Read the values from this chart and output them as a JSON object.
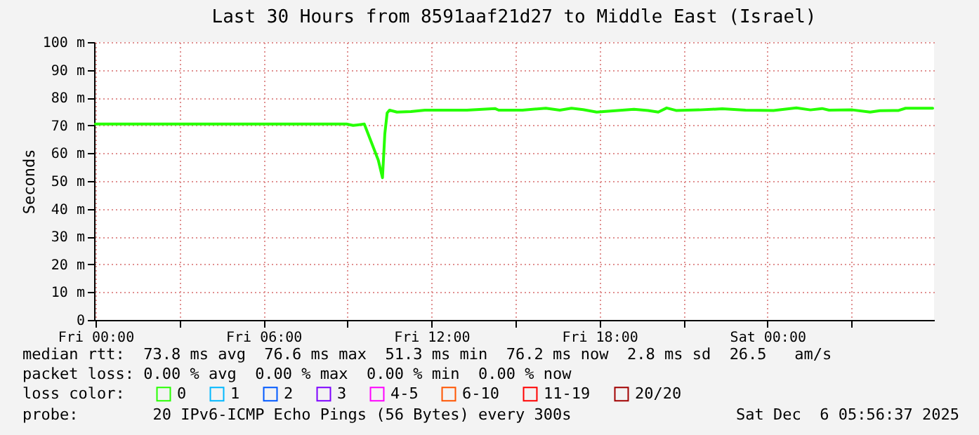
{
  "chart_data": {
    "type": "line",
    "title": "Last 30 Hours from 8591aaf21d27 to Middle East (Israel)",
    "ylabel": "Seconds",
    "legend_title": "loss color:",
    "x": [
      "2025-12-05T00:00",
      "2025-12-05T03:00",
      "2025-12-05T06:00",
      "2025-12-05T08:58",
      "2025-12-05T09:12",
      "2025-12-05T09:36",
      "2025-12-05T10:06",
      "2025-12-05T10:15",
      "2025-12-05T10:20",
      "2025-12-05T10:25",
      "2025-12-05T10:30",
      "2025-12-05T10:46",
      "2025-12-05T11:16",
      "2025-12-05T11:46",
      "2025-12-05T12:30",
      "2025-12-05T13:16",
      "2025-12-05T14:16",
      "2025-12-05T14:24",
      "2025-12-05T15:15",
      "2025-12-05T16:05",
      "2025-12-05T16:35",
      "2025-12-05T17:00",
      "2025-12-05T17:25",
      "2025-12-05T17:54",
      "2025-12-05T18:34",
      "2025-12-05T19:14",
      "2025-12-05T19:44",
      "2025-12-05T20:06",
      "2025-12-05T20:24",
      "2025-12-05T20:44",
      "2025-12-05T21:34",
      "2025-12-05T22:23",
      "2025-12-05T23:13",
      "2025-12-06T00:13",
      "2025-12-06T01:02",
      "2025-12-06T01:32",
      "2025-12-06T01:57",
      "2025-12-06T02:12",
      "2025-12-06T03:02",
      "2025-12-06T03:40",
      "2025-12-06T04:01",
      "2025-12-06T04:41",
      "2025-12-06T04:56",
      "2025-12-06T05:46",
      "2025-12-06T05:54"
    ],
    "series": [
      {
        "name": "0",
        "color": "#26ff00",
        "values": [
          70.5,
          70.5,
          70.5,
          70.5,
          70.0,
          70.5,
          57.5,
          51.2,
          67,
          74.5,
          75.5,
          74.8,
          75.0,
          75.5,
          75.5,
          75.5,
          76.1,
          75.5,
          75.5,
          76.2,
          75.5,
          76.2,
          75.7,
          74.8,
          75.3,
          75.8,
          75.4,
          74.8,
          76.3,
          75.4,
          75.6,
          76.0,
          75.5,
          75.4,
          76.3,
          75.6,
          76.1,
          75.5,
          75.6,
          74.8,
          75.3,
          75.4,
          76.2,
          76.2,
          76.2
        ]
      },
      {
        "name": "1",
        "color": "#00b8ff",
        "values": [
          null,
          null,
          null,
          null,
          null,
          null,
          null,
          null,
          null,
          null,
          null,
          null,
          null,
          null,
          null,
          null,
          null,
          null,
          null,
          null,
          null,
          null,
          null,
          null,
          null,
          null,
          null,
          null,
          null,
          null,
          null,
          null,
          null,
          null,
          null,
          null,
          null,
          null,
          null,
          null,
          null,
          null,
          null,
          null,
          null
        ]
      },
      {
        "name": "2",
        "color": "#0059ff",
        "values": [
          null,
          null,
          null,
          null,
          null,
          null,
          null,
          null,
          null,
          null,
          null,
          null,
          null,
          null,
          null,
          null,
          null,
          null,
          null,
          null,
          null,
          null,
          null,
          null,
          null,
          null,
          null,
          null,
          null,
          null,
          null,
          null,
          null,
          null,
          null,
          null,
          null,
          null,
          null,
          null,
          null,
          null,
          null,
          null,
          null
        ]
      },
      {
        "name": "3",
        "color": "#7e00ff",
        "values": [
          null,
          null,
          null,
          null,
          null,
          null,
          null,
          null,
          null,
          null,
          null,
          null,
          null,
          null,
          null,
          null,
          null,
          null,
          null,
          null,
          null,
          null,
          null,
          null,
          null,
          null,
          null,
          null,
          null,
          null,
          null,
          null,
          null,
          null,
          null,
          null,
          null,
          null,
          null,
          null,
          null,
          null,
          null,
          null,
          null
        ]
      },
      {
        "name": "4-5",
        "color": "#ff00ff",
        "values": [
          null,
          null,
          null,
          null,
          null,
          null,
          null,
          null,
          null,
          null,
          null,
          null,
          null,
          null,
          null,
          null,
          null,
          null,
          null,
          null,
          null,
          null,
          null,
          null,
          null,
          null,
          null,
          null,
          null,
          null,
          null,
          null,
          null,
          null,
          null,
          null,
          null,
          null,
          null,
          null,
          null,
          null,
          null,
          null,
          null
        ]
      },
      {
        "name": "6-10",
        "color": "#ff5500",
        "values": [
          null,
          null,
          null,
          null,
          null,
          null,
          null,
          null,
          null,
          null,
          null,
          null,
          null,
          null,
          null,
          null,
          null,
          null,
          null,
          null,
          null,
          null,
          null,
          null,
          null,
          null,
          null,
          null,
          null,
          null,
          null,
          null,
          null,
          null,
          null,
          null,
          null,
          null,
          null,
          null,
          null,
          null,
          null,
          null,
          null
        ]
      },
      {
        "name": "11-19",
        "color": "#ff0000",
        "values": [
          null,
          null,
          null,
          null,
          null,
          null,
          null,
          null,
          null,
          null,
          null,
          null,
          null,
          null,
          null,
          null,
          null,
          null,
          null,
          null,
          null,
          null,
          null,
          null,
          null,
          null,
          null,
          null,
          null,
          null,
          null,
          null,
          null,
          null,
          null,
          null,
          null,
          null,
          null,
          null,
          null,
          null,
          null,
          null,
          null
        ]
      },
      {
        "name": "20/20",
        "color": "#a10000",
        "values": [
          null,
          null,
          null,
          null,
          null,
          null,
          null,
          null,
          null,
          null,
          null,
          null,
          null,
          null,
          null,
          null,
          null,
          null,
          null,
          null,
          null,
          null,
          null,
          null,
          null,
          null,
          null,
          null,
          null,
          null,
          null,
          null,
          null,
          null,
          null,
          null,
          null,
          null,
          null,
          null,
          null,
          null,
          null,
          null,
          null
        ]
      }
    ],
    "xlim": [
      "2025-12-04T23:57",
      "2025-12-06T05:57"
    ],
    "xticks": [
      {
        "value": "2025-12-05T00:00",
        "label": "Fri 00:00"
      },
      {
        "value": "2025-12-05T03:00",
        "label": null
      },
      {
        "value": "2025-12-05T06:00",
        "label": "Fri 06:00"
      },
      {
        "value": "2025-12-05T09:00",
        "label": null
      },
      {
        "value": "2025-12-05T12:00",
        "label": "Fri 12:00"
      },
      {
        "value": "2025-12-05T15:00",
        "label": null
      },
      {
        "value": "2025-12-05T18:00",
        "label": "Fri 18:00"
      },
      {
        "value": "2025-12-05T21:00",
        "label": null
      },
      {
        "value": "2025-12-06T00:00",
        "label": "Sat 00:00"
      },
      {
        "value": "2025-12-06T03:00",
        "label": null
      }
    ],
    "ylim": [
      0,
      100
    ],
    "yticks": [
      0,
      {
        "value": 10,
        "label": "10 m"
      },
      {
        "value": 20,
        "label": "20 m"
      },
      {
        "value": 30,
        "label": "30 m"
      },
      {
        "value": 40,
        "label": "40 m"
      },
      {
        "value": 50,
        "label": "50 m"
      },
      {
        "value": 60,
        "label": "60 m"
      },
      {
        "value": 70,
        "label": "70 m"
      },
      {
        "value": 80,
        "label": "80 m"
      },
      {
        "value": 90,
        "label": "90 m"
      },
      {
        "value": 100,
        "label": "100 m"
      }
    ],
    "grid": true,
    "legend": "bottom",
    "marker": "none",
    "line_style": "solid",
    "annotations": [
      "median rtt:  73.8 ms avg  76.6 ms max  51.3 ms min  76.2 ms now  2.8 ms sd  26.5   am/s",
      "packet loss: 0.00 % avg  0.00 % max  0.00 % min  0.00 % now",
      "probe:        20 IPv6-ICMP Echo Pings (56 Bytes) every 300s",
      "Sat Dec  6 05:56:37 2025"
    ]
  }
}
